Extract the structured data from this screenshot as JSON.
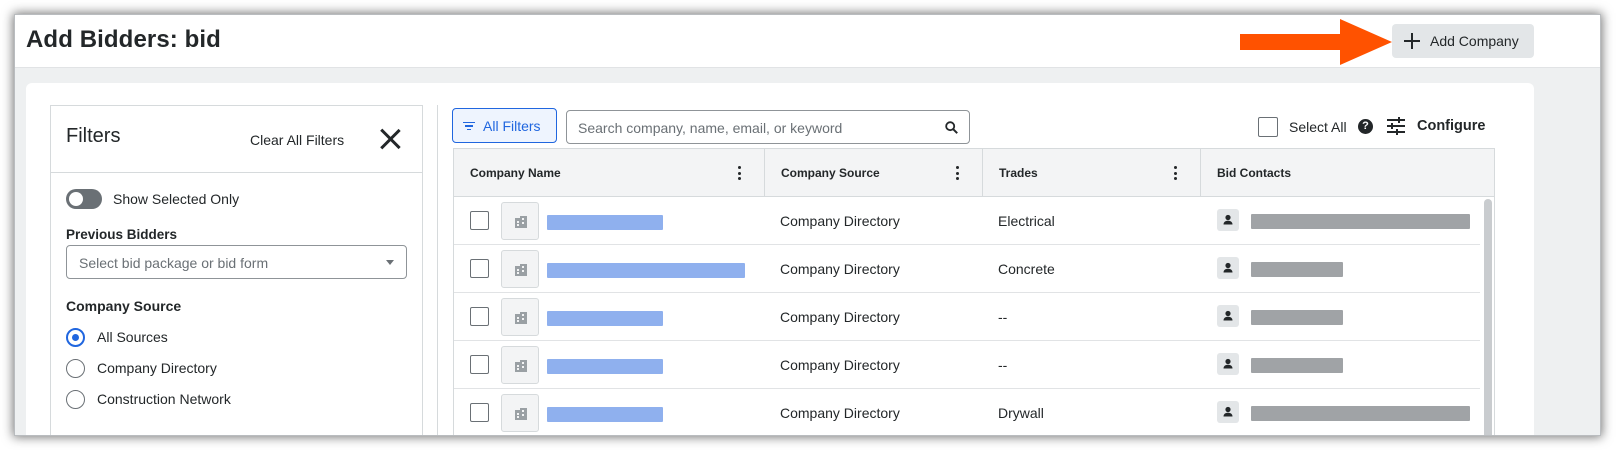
{
  "header": {
    "title": "Add Bidders: bid",
    "add_company_label": "Add Company"
  },
  "filters": {
    "title": "Filters",
    "clear_all_label": "Clear All Filters",
    "show_selected_label": "Show Selected Only",
    "show_selected_on": false,
    "previous_bidders_label": "Previous Bidders",
    "previous_bidders_placeholder": "Select bid package or bid form",
    "company_source_label": "Company Source",
    "company_source_options": [
      {
        "label": "All Sources",
        "selected": true
      },
      {
        "label": "Company Directory",
        "selected": false
      },
      {
        "label": "Construction Network",
        "selected": false
      }
    ]
  },
  "toolbar": {
    "all_filters_label": "All Filters",
    "search_placeholder": "Search company, name, email, or keyword",
    "select_all_label": "Select All",
    "help_glyph": "?",
    "configure_label": "Configure"
  },
  "table": {
    "columns": [
      "Company Name",
      "Company Source",
      "Trades",
      "Bid Contacts"
    ],
    "rows": [
      {
        "company_source": "Company Directory",
        "trades": "Electrical"
      },
      {
        "company_source": "Company Directory",
        "trades": "Concrete"
      },
      {
        "company_source": "Company Directory",
        "trades": "--"
      },
      {
        "company_source": "Company Directory",
        "trades": "--"
      },
      {
        "company_source": "Company Directory",
        "trades": "Drywall"
      }
    ]
  },
  "icons": {
    "add": "plus-icon",
    "close": "close-icon",
    "filter": "filter-icon",
    "search": "search-icon",
    "help": "help-icon",
    "configure": "sliders-icon",
    "column_menu": "kebab-icon",
    "company_logo": "building-icon",
    "contact": "person-icon",
    "annotation": "arrow-icon"
  },
  "colors": {
    "accent": "#2066df",
    "annotation_arrow": "#ff5200",
    "redacted_name": "#8fb0ee",
    "redacted_contact": "#a0a3a6"
  }
}
